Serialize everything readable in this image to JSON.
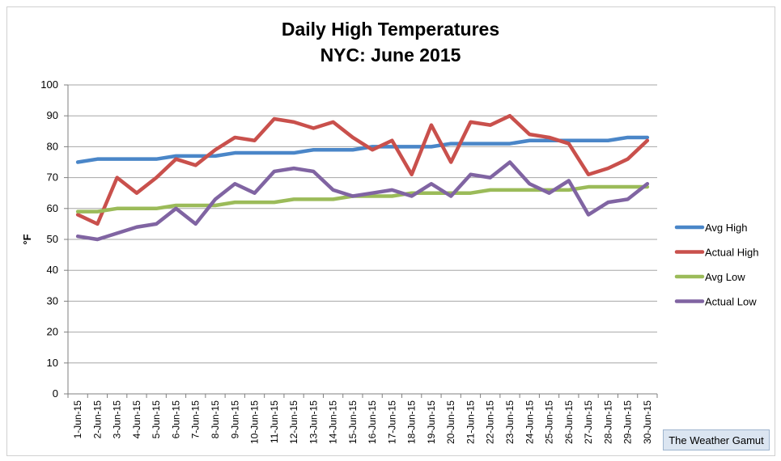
{
  "chart_data": {
    "type": "line",
    "title": "Daily High Temperatures",
    "subtitle": "NYC: June 2015",
    "ylabel": "°F",
    "xlabel": "",
    "ylim": [
      0,
      100
    ],
    "y_ticks": [
      "0",
      "10",
      "20",
      "30",
      "40",
      "50",
      "60",
      "70",
      "80",
      "90",
      "100"
    ],
    "grid": true,
    "legend_position": "right",
    "categories": [
      "1-Jun-15",
      "2-Jun-15",
      "3-Jun-15",
      "4-Jun-15",
      "5-Jun-15",
      "6-Jun-15",
      "7-Jun-15",
      "8-Jun-15",
      "9-Jun-15",
      "10-Jun-15",
      "11-Jun-15",
      "12-Jun-15",
      "13-Jun-15",
      "14-Jun-15",
      "15-Jun-15",
      "16-Jun-15",
      "17-Jun-15",
      "18-Jun-15",
      "19-Jun-15",
      "20-Jun-15",
      "21-Jun-15",
      "22-Jun-15",
      "23-Jun-15",
      "24-Jun-15",
      "25-Jun-15",
      "26-Jun-15",
      "27-Jun-15",
      "28-Jun-15",
      "29-Jun-15",
      "30-Jun-15"
    ],
    "series": [
      {
        "name": "Avg High",
        "color": "#4a86c8",
        "values": [
          75,
          76,
          76,
          76,
          76,
          77,
          77,
          77,
          78,
          78,
          78,
          78,
          79,
          79,
          79,
          80,
          80,
          80,
          80,
          81,
          81,
          81,
          81,
          82,
          82,
          82,
          82,
          82,
          83,
          83
        ]
      },
      {
        "name": "Actual High",
        "color": "#c9504c",
        "values": [
          58,
          55,
          70,
          65,
          70,
          76,
          74,
          79,
          83,
          82,
          89,
          88,
          86,
          88,
          83,
          79,
          82,
          71,
          87,
          75,
          88,
          87,
          90,
          84,
          83,
          81,
          71,
          73,
          76,
          82
        ]
      },
      {
        "name": "Avg Low",
        "color": "#9bbb59",
        "values": [
          59,
          59,
          60,
          60,
          60,
          61,
          61,
          61,
          62,
          62,
          62,
          63,
          63,
          63,
          64,
          64,
          64,
          65,
          65,
          65,
          65,
          66,
          66,
          66,
          66,
          66,
          67,
          67,
          67,
          67
        ]
      },
      {
        "name": "Actual Low",
        "color": "#8064a2",
        "values": [
          51,
          50,
          52,
          54,
          55,
          60,
          55,
          63,
          68,
          65,
          72,
          73,
          72,
          66,
          64,
          65,
          66,
          64,
          68,
          64,
          71,
          70,
          75,
          68,
          65,
          69,
          58,
          62,
          63,
          68
        ]
      }
    ]
  },
  "credit": "The Weather Gamut"
}
